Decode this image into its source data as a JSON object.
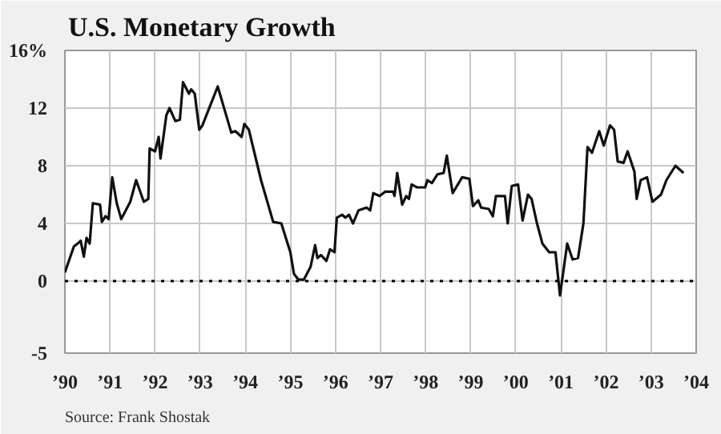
{
  "chart_data": {
    "type": "line",
    "title": "U.S. Monetary Growth",
    "annotations": [
      "Source: Frank Shostak"
    ],
    "xlim": [
      1990,
      2004
    ],
    "xticks": [
      {
        "value": 1990,
        "label": "’90"
      },
      {
        "value": 1991,
        "label": "’91"
      },
      {
        "value": 1992,
        "label": "’92"
      },
      {
        "value": 1993,
        "label": "’93"
      },
      {
        "value": 1994,
        "label": "’94"
      },
      {
        "value": 1995,
        "label": "’95"
      },
      {
        "value": 1996,
        "label": "’96"
      },
      {
        "value": 1997,
        "label": "’97"
      },
      {
        "value": 1998,
        "label": "’98"
      },
      {
        "value": 1999,
        "label": "’99"
      },
      {
        "value": 2000,
        "label": "’00"
      },
      {
        "value": 2001,
        "label": "’01"
      },
      {
        "value": 2002,
        "label": "’02"
      },
      {
        "value": 2003,
        "label": "’03"
      },
      {
        "value": 2004,
        "label": "’04"
      }
    ],
    "ylim": [
      -5,
      16
    ],
    "yticks": [
      -5,
      0,
      4,
      8,
      12,
      {
        "value": 16,
        "label": "16%"
      }
    ],
    "grid": true,
    "marker": "none",
    "line_style": "solid",
    "ref_lines": [
      {
        "axis": "y",
        "value": 0,
        "label": null,
        "color": "#000000",
        "line_style": "dotted"
      }
    ],
    "series": [
      {
        "color": "#111111",
        "x": [
          1990.0,
          1990.2,
          1990.32,
          1990.35,
          1990.42,
          1990.48,
          1990.55,
          1990.62,
          1990.78,
          1990.82,
          1990.9,
          1990.97,
          1991.05,
          1991.15,
          1991.25,
          1991.45,
          1991.58,
          1991.75,
          1991.85,
          1991.88,
          1992.0,
          1992.08,
          1992.12,
          1992.25,
          1992.32,
          1992.45,
          1992.55,
          1992.62,
          1992.75,
          1992.8,
          1992.88,
          1992.98,
          1993.05,
          1993.39,
          1993.69,
          1993.78,
          1993.92,
          1993.98,
          1994.08,
          1994.35,
          1994.62,
          1994.8,
          1995.0,
          1995.08,
          1995.18,
          1995.3,
          1995.45,
          1995.55,
          1995.6,
          1995.68,
          1995.8,
          1995.88,
          1995.98,
          1996.03,
          1996.15,
          1996.22,
          1996.3,
          1996.39,
          1996.51,
          1996.69,
          1996.77,
          1996.84,
          1996.98,
          1997.1,
          1997.28,
          1997.31,
          1997.37,
          1997.48,
          1997.57,
          1997.63,
          1997.69,
          1997.81,
          1997.99,
          1998.04,
          1998.14,
          1998.26,
          1998.4,
          1998.47,
          1998.6,
          1998.81,
          1998.97,
          1999.05,
          1999.17,
          1999.23,
          1999.4,
          1999.49,
          1999.56,
          1999.76,
          1999.82,
          1999.91,
          2000.05,
          2000.15,
          2000.27,
          2000.35,
          2000.47,
          2000.59,
          2000.74,
          2000.88,
          2000.98,
          2001.14,
          2001.26,
          2001.38,
          2001.5,
          2001.59,
          2001.69,
          2001.85,
          2001.95,
          2002.09,
          2002.18,
          2002.26,
          2002.39,
          2002.48,
          2002.63,
          2002.68,
          2002.77,
          2002.91,
          2003.03,
          2003.22,
          2003.34,
          2003.54,
          2003.72
        ],
        "values": [
          0.6,
          2.4,
          2.7,
          2.8,
          1.7,
          3.0,
          2.6,
          5.4,
          5.3,
          4.1,
          4.5,
          4.3,
          7.2,
          5.4,
          4.3,
          5.5,
          7.0,
          5.5,
          5.7,
          9.2,
          9.0,
          10.0,
          8.5,
          11.5,
          12.0,
          11.1,
          11.2,
          13.8,
          13.0,
          13.3,
          13.0,
          10.5,
          10.8,
          13.5,
          10.3,
          10.4,
          10.0,
          10.9,
          10.5,
          7.0,
          4.1,
          4.0,
          2.0,
          0.5,
          0.1,
          0.1,
          1.0,
          2.5,
          1.6,
          1.8,
          1.4,
          2.2,
          2.0,
          4.4,
          4.6,
          4.4,
          4.6,
          4.0,
          4.9,
          5.1,
          4.9,
          6.1,
          5.9,
          6.2,
          6.2,
          5.9,
          7.5,
          5.3,
          5.9,
          5.7,
          6.7,
          6.5,
          6.5,
          7.0,
          6.8,
          7.4,
          7.5,
          8.7,
          6.1,
          7.2,
          7.1,
          5.2,
          5.6,
          5.1,
          5.0,
          4.5,
          5.9,
          5.9,
          4.0,
          6.6,
          6.7,
          4.2,
          6.0,
          5.7,
          4.0,
          2.6,
          2.0,
          2.0,
          -1.0,
          2.6,
          1.5,
          1.6,
          4.0,
          9.3,
          8.9,
          10.4,
          9.4,
          10.8,
          10.5,
          8.3,
          8.2,
          9.0,
          7.6,
          5.7,
          7.0,
          7.2,
          5.5,
          6.0,
          7.0,
          8.0,
          7.5
        ]
      }
    ]
  }
}
